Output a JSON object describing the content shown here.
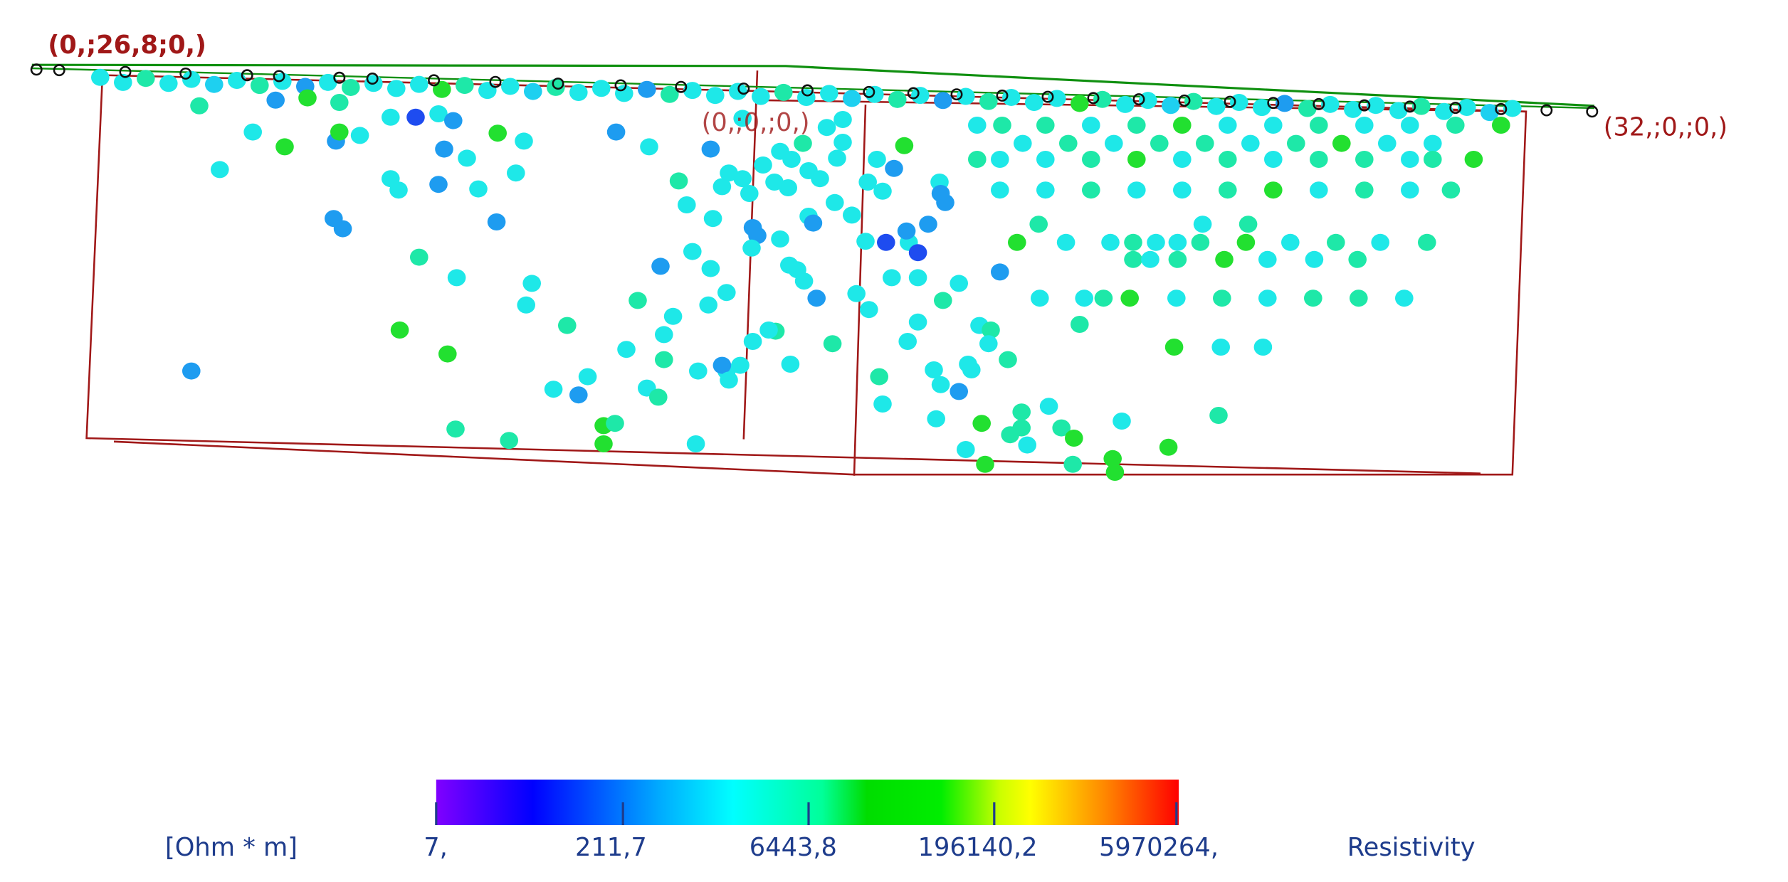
{
  "labels": {
    "top_left": "(0,;26,8;0,)",
    "top_right": "(32,;0,;0,)",
    "middle": "(0,;0,;0,)"
  },
  "colorbar": {
    "unit": "[Ohm * m]",
    "ticks": [
      "7,",
      "211,7",
      "6443,8",
      "196140,2",
      "5970264,"
    ],
    "title": "Resistivity"
  }
}
